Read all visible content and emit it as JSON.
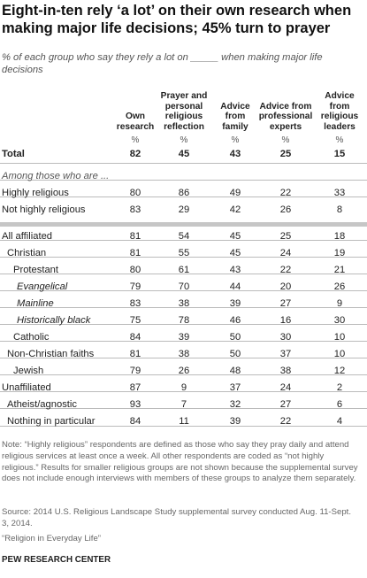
{
  "title": "Eight-in-ten rely ‘a lot’ on their own research when making major life decisions; 45% turn to prayer",
  "subtitle": "% of each group who say they rely a lot on _____ when making major life decisions",
  "chart_data": {
    "type": "table",
    "columns": [
      {
        "label": "Own research",
        "lines": [
          "Own",
          "research"
        ]
      },
      {
        "label": "Prayer and personal religious reflection",
        "lines": [
          "Prayer and",
          "personal",
          "religious",
          "reflection"
        ]
      },
      {
        "label": "Advice from family",
        "lines": [
          "Advice",
          "from",
          "family"
        ]
      },
      {
        "label": "Advice from professional experts",
        "lines": [
          "Advice from",
          "professional",
          "experts"
        ]
      },
      {
        "label": "Advice from religious leaders",
        "lines": [
          "Advice",
          "from",
          "religious",
          "leaders"
        ]
      }
    ],
    "unit_row": [
      "%",
      "%",
      "%",
      "%",
      "%"
    ],
    "rows": [
      {
        "label": "Total",
        "values": [
          82,
          45,
          43,
          25,
          15
        ],
        "bold": true
      },
      {
        "label": "Among those who are ...",
        "values": [],
        "italic": true
      },
      {
        "label": "Highly religious",
        "values": [
          80,
          86,
          49,
          22,
          33
        ]
      },
      {
        "label": "Not highly religious",
        "values": [
          83,
          29,
          42,
          26,
          8
        ]
      },
      {
        "label": "All affiliated",
        "values": [
          81,
          54,
          45,
          25,
          18
        ]
      },
      {
        "label": "Christian",
        "values": [
          81,
          55,
          45,
          24,
          19
        ]
      },
      {
        "label": "Protestant",
        "values": [
          80,
          61,
          43,
          22,
          21
        ]
      },
      {
        "label": "Evangelical",
        "values": [
          79,
          70,
          44,
          20,
          26
        ],
        "italic": true
      },
      {
        "label": "Mainline",
        "values": [
          83,
          38,
          39,
          27,
          9
        ],
        "italic": true
      },
      {
        "label": "Historically black",
        "values": [
          75,
          78,
          46,
          16,
          30
        ],
        "italic": true
      },
      {
        "label": "Catholic",
        "values": [
          84,
          39,
          50,
          30,
          10
        ]
      },
      {
        "label": "Non-Christian faiths",
        "values": [
          81,
          38,
          50,
          37,
          10
        ]
      },
      {
        "label": "Jewish",
        "values": [
          79,
          26,
          48,
          38,
          12
        ]
      },
      {
        "label": "Unaffiliated",
        "values": [
          87,
          9,
          37,
          24,
          2
        ]
      },
      {
        "label": "Atheist/agnostic",
        "values": [
          93,
          7,
          32,
          27,
          6
        ]
      },
      {
        "label": "Nothing in particular",
        "values": [
          84,
          11,
          39,
          22,
          4
        ]
      }
    ]
  },
  "note": "Note: “Highly religious” respondents are defined as those who say they pray daily and attend religious services at least once a week. All other respondents are coded as “not highly religious.” Results for smaller religious groups are not shown because the supplemental survey does not include enough interviews with members of these groups to analyze them separately.",
  "source": "Source: 2014 U.S. Religious Landscape Study supplemental survey conducted Aug. 11-Sept. 3, 2014.",
  "report": "“Religion in Everyday Life”",
  "brand": "PEW RESEARCH CENTER"
}
